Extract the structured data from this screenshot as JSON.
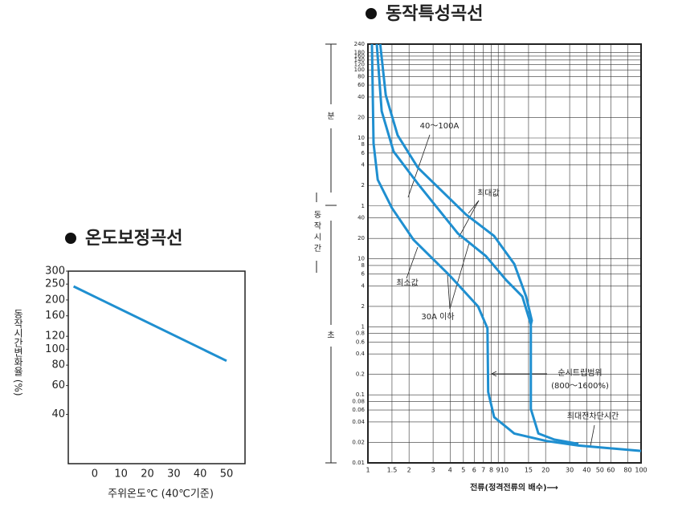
{
  "chart_data": [
    {
      "type": "line",
      "title": "온도보정곡선",
      "xlabel": "주위온도℃ (40℃기준)",
      "ylabel": "동작시간변화율 (%)",
      "x": [
        -8,
        50
      ],
      "values": [
        242,
        85
      ],
      "color": "#1f8fd0",
      "xlim": [
        -10,
        57
      ],
      "ylim": [
        20,
        300
      ],
      "ylog": true,
      "xlog": false,
      "xticks": [
        0,
        10,
        20,
        30,
        40,
        50
      ],
      "yticks": [
        40,
        60,
        80,
        100,
        120,
        160,
        200,
        250,
        300
      ],
      "grid": false
    },
    {
      "type": "line",
      "title": "동작특성곡선",
      "xlabel": "전류(정격전류의 배수)⟶",
      "ylabel": "동작시간",
      "unit_labels": [
        "분",
        "초"
      ],
      "xlim": [
        1,
        100
      ],
      "ylim": [
        0.01,
        14400
      ],
      "xlog": true,
      "ylog": true,
      "grid": true,
      "xticks": [
        1,
        1.5,
        2,
        3,
        4,
        5,
        6,
        7,
        8,
        9,
        10,
        15,
        20,
        30,
        40,
        50,
        60,
        80,
        100
      ],
      "yticks": [
        0.01,
        0.02,
        0.04,
        0.06,
        0.08,
        0.1,
        0.2,
        0.4,
        0.6,
        0.8,
        1,
        2,
        4,
        6,
        8,
        10,
        20,
        40,
        {
          "value": 60,
          "label": "1"
        },
        {
          "value": 120,
          "label": "2"
        },
        {
          "value": 240,
          "label": "4"
        },
        {
          "value": 360,
          "label": "6"
        },
        {
          "value": 480,
          "label": "8"
        },
        {
          "value": 600,
          "label": "10"
        },
        {
          "value": 1200,
          "label": "20"
        },
        {
          "value": 2400,
          "label": "40"
        },
        {
          "value": 3600,
          "label": "60"
        },
        {
          "value": 4800,
          "label": "80"
        },
        {
          "value": 6000,
          "label": "100"
        },
        {
          "value": 7200,
          "label": "120"
        },
        {
          "value": 8400,
          "label": "140"
        },
        {
          "value": 9600,
          "label": "160"
        },
        {
          "value": 10800,
          "label": "180"
        },
        {
          "value": 14400,
          "label": "240"
        }
      ],
      "series": [
        {
          "color": "#1f8fd0",
          "x": [
            1.07,
            1.1,
            1.18,
            1.5,
            2.16,
            4,
            6.4,
            7.5,
            7.6,
            8.4,
            11.8,
            20.2,
            34.8,
            100
          ],
          "values": [
            14400,
            500,
            146,
            56,
            19,
            5.6,
            2.0,
            0.95,
            0.11,
            0.047,
            0.027,
            0.021,
            0.018,
            0.015
          ]
        },
        {
          "color": "#1f8fd0",
          "x": [
            1.16,
            1.26,
            1.54,
            2.32,
            4.56,
            7.3,
            10.3,
            13.5,
            15.6,
            15.6,
            17.7,
            23.2,
            34.8
          ],
          "values": [
            14400,
            1485,
            380,
            128,
            23.6,
            11,
            4.85,
            2.8,
            1.09,
            0.062,
            0.027,
            0.022,
            0.019
          ]
        },
        {
          "color": "#1f8fd0",
          "x": [
            1.23,
            1.35,
            1.65,
            2.32,
            5.22,
            8.4,
            11.8,
            14.4,
            15.85,
            15.6
          ],
          "values": [
            14400,
            2560,
            656,
            220,
            45,
            21.7,
            8.4,
            2.8,
            1.24,
            1.09
          ]
        }
      ],
      "annotations": [
        "40～100A",
        "최대값",
        "최소값",
        "30A 이하",
        "순시트립범위",
        "(800～1600%)",
        "최대전차단시간"
      ]
    }
  ]
}
